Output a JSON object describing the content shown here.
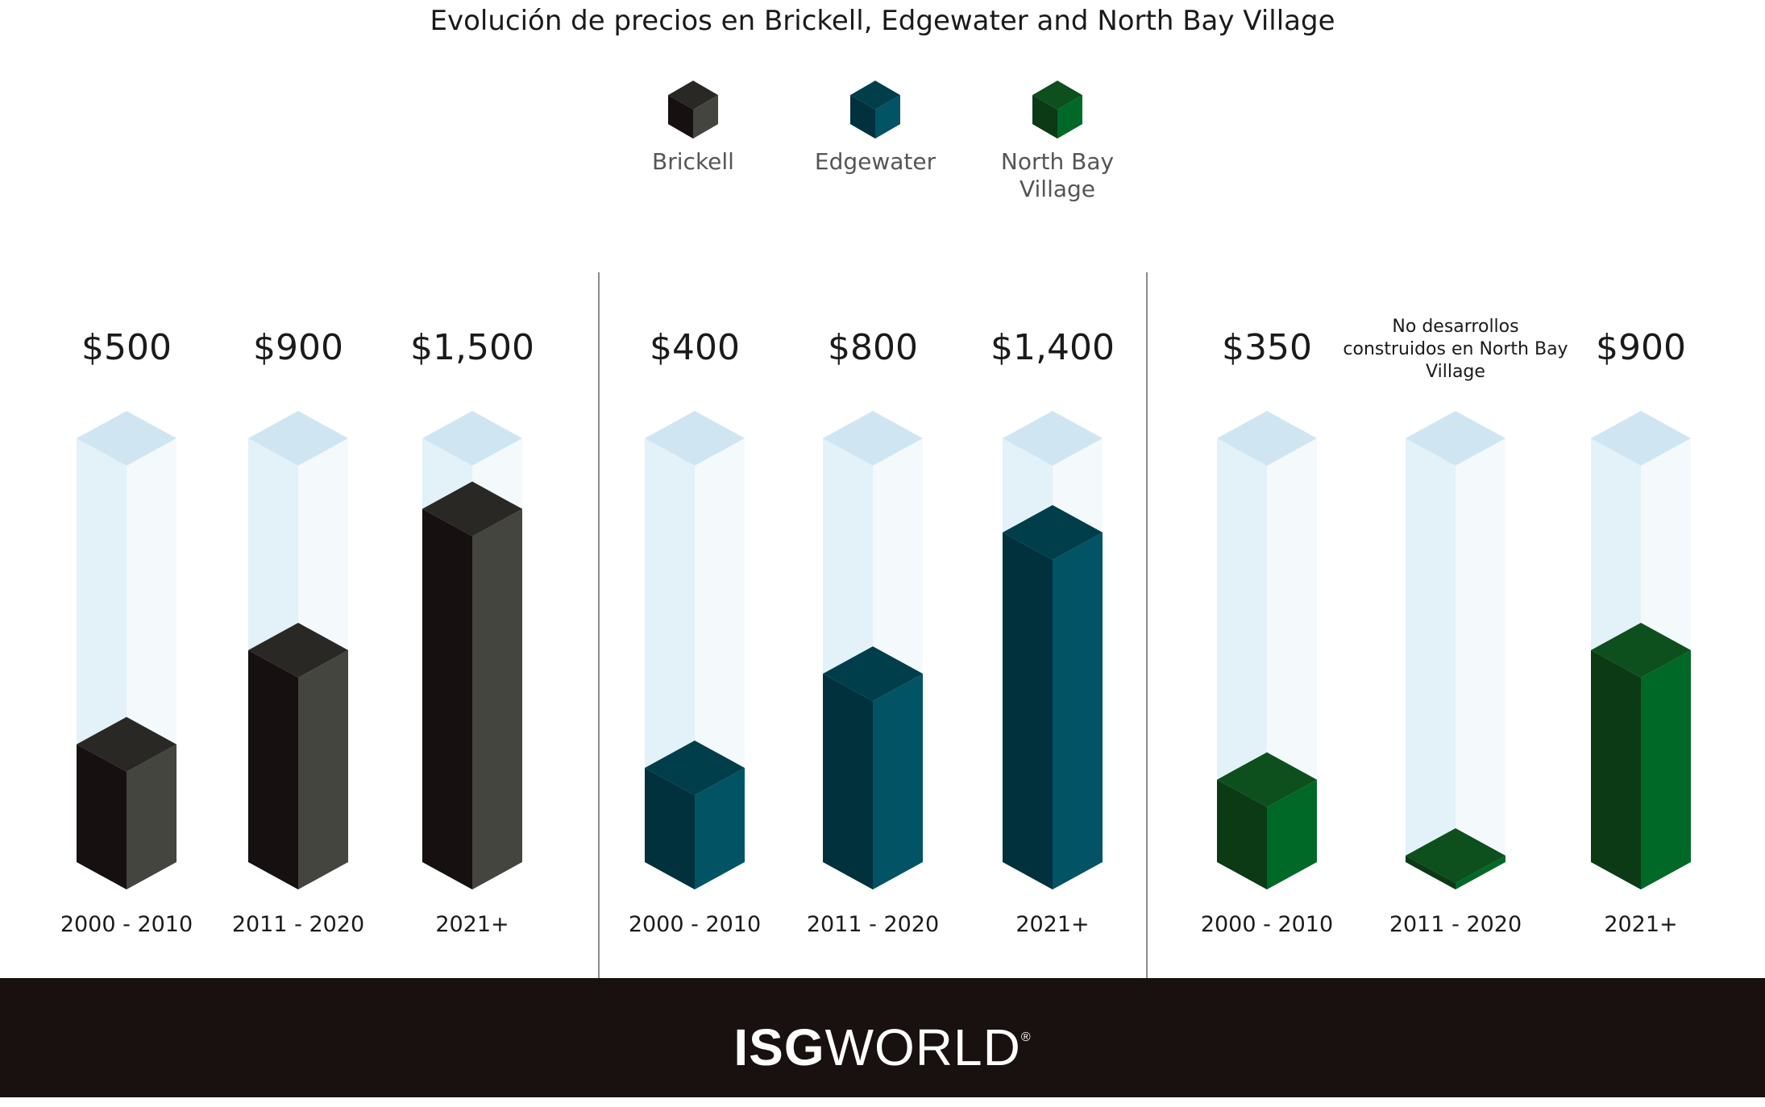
{
  "chart_data": {
    "type": "bar",
    "title": "Evolución de precios en Brickell, Edgewater and North Bay Village",
    "categories": [
      "2000 - 2010",
      "2011 - 2020",
      "2021+"
    ],
    "legend": [
      {
        "name": "Brickell",
        "color_top": "#2a2824",
        "color_left": "#161010",
        "color_right": "#45453f"
      },
      {
        "name": "Edgewater",
        "color_top": "#013e4b",
        "color_left": "#01313d",
        "color_right": "#025464"
      },
      {
        "name": "North Bay Village",
        "color_top": "#0d4f1d",
        "color_left": "#0b3a15",
        "color_right": "#006928"
      }
    ],
    "ylim": [
      0,
      1800
    ],
    "series": [
      {
        "name": "Brickell",
        "values": [
          500,
          900,
          1500
        ],
        "labels": [
          "$500",
          "$900",
          "$1,500"
        ]
      },
      {
        "name": "Edgewater",
        "values": [
          400,
          800,
          1400
        ],
        "labels": [
          "$400",
          "$800",
          "$1,400"
        ]
      },
      {
        "name": "North Bay Village",
        "values": [
          350,
          0,
          900
        ],
        "labels": [
          "$350",
          "",
          "$900"
        ]
      }
    ],
    "note": "No desarrollos construidos en North Bay Village",
    "grid": false,
    "legend_position": "top-center"
  },
  "footer": {
    "logo_bold": "ISG",
    "logo_light": "WORLD",
    "logo_mark": "®"
  }
}
